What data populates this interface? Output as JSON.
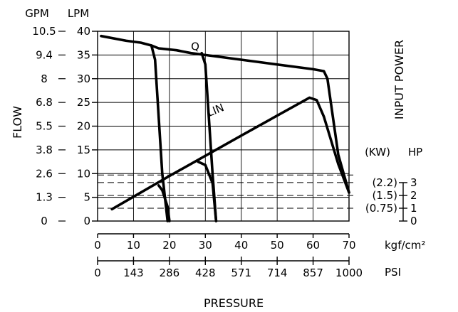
{
  "chart_data": {
    "type": "line",
    "title": "",
    "xlabel": "PRESSURE",
    "ylabel": "FLOW",
    "right_label": "INPUT POWER",
    "x_primary": {
      "unit": "kgf/cm²",
      "range": [
        0,
        70
      ],
      "ticks": [
        0,
        10,
        20,
        30,
        40,
        50,
        60,
        70
      ],
      "tick_labels": [
        "0",
        "10",
        "20",
        "30",
        "40",
        "50",
        "60",
        "70"
      ]
    },
    "x_secondary": {
      "unit": "PSI",
      "ticks_kgf": [
        0,
        10,
        20,
        30,
        40,
        50,
        60,
        70
      ],
      "tick_labels": [
        "0",
        "143",
        "286",
        "428",
        "571",
        "714",
        "857",
        "1000"
      ]
    },
    "y_left": {
      "range": [
        0,
        40
      ],
      "lpm_header": "LPM",
      "gpm_header": "GPM",
      "lpm_labels": [
        "0",
        "5",
        "10",
        "15",
        "20",
        "25",
        "30",
        "35",
        "40"
      ],
      "gpm_labels": [
        "0",
        "1.3",
        "2.6",
        "3.8",
        "5.5",
        "6.8",
        "8",
        "9.4",
        "10.5"
      ]
    },
    "y_right": {
      "kw_header": "(KW)",
      "hp_header": "HP",
      "ticks": [
        {
          "y": 0,
          "hp": "0",
          "kw": ""
        },
        {
          "y": 2.7,
          "hp": "1",
          "kw": "(0.75)"
        },
        {
          "y": 5.4,
          "hp": "2",
          "kw": "(1.5)"
        },
        {
          "y": 8.1,
          "hp": "3",
          "kw": "(2.2)"
        }
      ]
    },
    "reference_lines": [
      2.7,
      5.4,
      8.1,
      9.7
    ],
    "grid": true,
    "series": [
      {
        "name": "Q",
        "label_at": [
          26,
          36
        ],
        "points": [
          [
            1,
            39
          ],
          [
            8,
            38
          ],
          [
            12,
            37.6
          ],
          [
            15,
            37
          ],
          [
            17,
            36.4
          ],
          [
            22,
            36
          ],
          [
            26,
            35.4
          ],
          [
            30,
            35
          ],
          [
            45,
            33.5
          ],
          [
            60,
            32
          ],
          [
            63,
            31.6
          ],
          [
            64,
            30
          ],
          [
            67,
            14
          ],
          [
            70,
            6
          ]
        ]
      },
      {
        "name": "LIN",
        "label_at": [
          31,
          22
        ],
        "points": [
          [
            4,
            2.5
          ],
          [
            20,
            9.5
          ],
          [
            40,
            18
          ],
          [
            59,
            26
          ],
          [
            61,
            25.5
          ],
          [
            63,
            22
          ],
          [
            67,
            12
          ],
          [
            70,
            6
          ]
        ]
      },
      {
        "name": "",
        "points": [
          [
            15,
            37
          ],
          [
            16,
            34
          ],
          [
            18,
            10
          ],
          [
            19.5,
            0
          ]
        ]
      },
      {
        "name": "",
        "points": [
          [
            29,
            35.4
          ],
          [
            30,
            33
          ],
          [
            32,
            10
          ],
          [
            33,
            0
          ]
        ]
      },
      {
        "name": "",
        "points": [
          [
            17,
            7.5
          ],
          [
            18,
            6.5
          ],
          [
            19.5,
            3
          ],
          [
            20,
            0
          ]
        ]
      },
      {
        "name": "",
        "points": [
          [
            28,
            12.5
          ],
          [
            30,
            11.8
          ],
          [
            32,
            8
          ],
          [
            33,
            0
          ]
        ]
      }
    ]
  }
}
